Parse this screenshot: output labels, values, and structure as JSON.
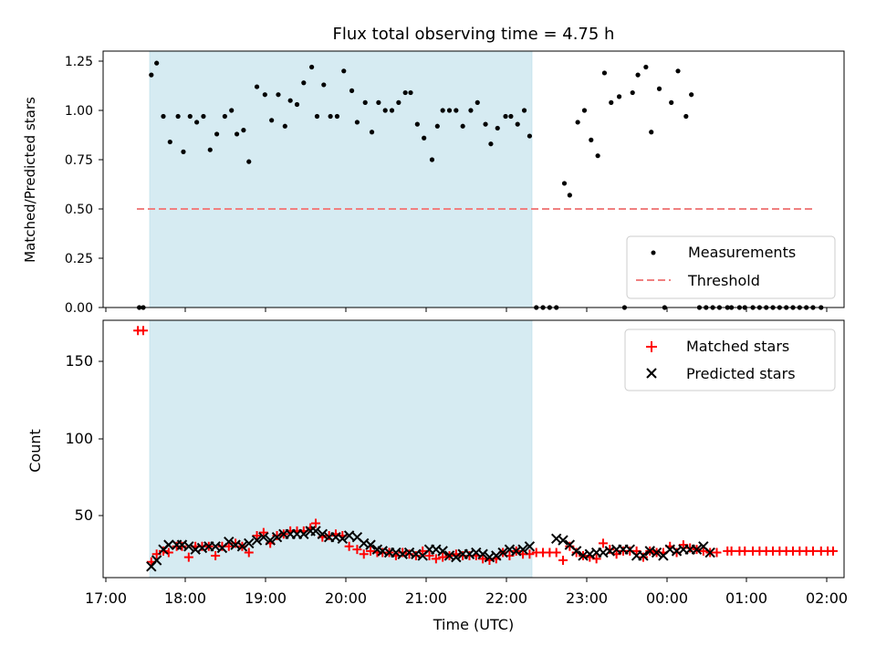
{
  "title": "Flux total observing time = 4.75 h",
  "colors": {
    "shade": "#add8e6",
    "measurements": "#000000",
    "threshold": "#f08080",
    "matched": "#ff0000",
    "predicted": "#000000"
  },
  "chart_data": [
    {
      "type": "scatter",
      "ylabel": "Matched/Predicted stars",
      "xlim": [
        "17:00",
        "02:10"
      ],
      "ylim": [
        0,
        1.3
      ],
      "yticks": [
        "0.00",
        "0.25",
        "0.50",
        "0.75",
        "1.00",
        "1.25"
      ],
      "shaded_span": [
        "17:34",
        "22:17"
      ],
      "legend": {
        "position": "lower-right",
        "entries": [
          "Measurements",
          "Threshold"
        ]
      },
      "threshold": {
        "name": "Threshold",
        "value": 0.5,
        "x_range": [
          "17:25",
          "02:05"
        ]
      },
      "series": [
        {
          "name": "Measurements",
          "x": [
            "17:25",
            "17:28",
            "17:34",
            "17:38",
            "17:43",
            "17:48",
            "17:54",
            "17:58",
            "18:03",
            "18:08",
            "18:13",
            "18:18",
            "18:23",
            "18:29",
            "18:34",
            "18:38",
            "18:43",
            "18:47",
            "18:53",
            "18:59",
            "19:04",
            "19:09",
            "19:14",
            "19:18",
            "19:23",
            "19:28",
            "19:34",
            "19:38",
            "19:43",
            "19:48",
            "19:53",
            "19:58",
            "20:04",
            "20:08",
            "20:14",
            "20:19",
            "20:24",
            "20:29",
            "20:34",
            "20:39",
            "20:44",
            "20:48",
            "20:53",
            "20:58",
            "21:04",
            "21:08",
            "21:12",
            "21:17",
            "21:22",
            "21:27",
            "21:33",
            "21:38",
            "21:44",
            "21:48",
            "21:53",
            "21:59",
            "22:03",
            "22:08",
            "22:13",
            "22:17",
            "22:22",
            "22:27",
            "22:32",
            "22:37",
            "22:43",
            "22:47",
            "22:53",
            "22:58",
            "23:03",
            "23:08",
            "23:13",
            "23:18",
            "23:24",
            "23:28",
            "23:34",
            "23:38",
            "23:44",
            "23:48",
            "23:54",
            "23:58",
            "00:03",
            "00:08",
            "00:14",
            "00:18",
            "00:24",
            "00:29",
            "00:34",
            "00:39",
            "00:45",
            "00:48",
            "00:54",
            "00:58",
            "01:04",
            "01:09",
            "01:14",
            "01:19",
            "01:24",
            "01:29",
            "01:34",
            "01:39",
            "01:44",
            "01:49",
            "01:55"
          ],
          "y": [
            0,
            0,
            1.18,
            1.24,
            0.97,
            0.84,
            0.97,
            0.79,
            0.97,
            0.94,
            0.97,
            0.8,
            0.88,
            0.97,
            1.0,
            0.88,
            0.9,
            0.74,
            1.12,
            1.08,
            0.95,
            1.08,
            0.92,
            1.05,
            1.03,
            1.14,
            1.22,
            0.97,
            1.13,
            0.97,
            0.97,
            1.2,
            1.1,
            0.94,
            1.04,
            0.89,
            1.04,
            1.0,
            1.0,
            1.04,
            1.09,
            1.09,
            0.93,
            0.86,
            0.75,
            0.92,
            1.0,
            1.0,
            1.0,
            0.92,
            1.0,
            1.04,
            0.93,
            0.83,
            0.91,
            0.97,
            0.97,
            0.93,
            1.0,
            0.87,
            0,
            0,
            0,
            0,
            0.63,
            0.57,
            0.94,
            1.0,
            0.85,
            0.77,
            1.19,
            1.04,
            1.07,
            0,
            1.09,
            1.18,
            1.22,
            0.89,
            1.11,
            0,
            1.04,
            1.2,
            0.97,
            1.08,
            0,
            0,
            0,
            0,
            0,
            0,
            0,
            0,
            0,
            0,
            0,
            0,
            0,
            0,
            0,
            0,
            0,
            0,
            0
          ]
        }
      ]
    },
    {
      "type": "scatter",
      "xlabel": "Time (UTC)",
      "ylabel": "Count",
      "xlim": [
        "17:00",
        "02:10"
      ],
      "ylim": [
        9,
        177
      ],
      "yticks": [
        "50",
        "100",
        "150"
      ],
      "xticks": [
        "17:00",
        "18:00",
        "19:00",
        "20:00",
        "21:00",
        "22:00",
        "23:00",
        "00:00",
        "01:00",
        "02:00"
      ],
      "shaded_span": [
        "17:34",
        "22:17"
      ],
      "legend": {
        "position": "top-right",
        "entries": [
          "Matched stars",
          "Predicted stars"
        ]
      },
      "series": [
        {
          "name": "Matched stars",
          "x": [
            "17:24",
            "17:28",
            "17:34",
            "17:38",
            "17:43",
            "17:47",
            "17:53",
            "17:57",
            "18:02",
            "18:07",
            "18:12",
            "18:17",
            "18:22",
            "18:27",
            "18:32",
            "18:37",
            "18:42",
            "18:47",
            "18:53",
            "18:58",
            "19:03",
            "19:08",
            "19:13",
            "19:18",
            "19:23",
            "19:28",
            "19:33",
            "19:37",
            "19:42",
            "19:47",
            "19:52",
            "19:57",
            "20:02",
            "20:08",
            "20:13",
            "20:18",
            "20:23",
            "20:27",
            "20:32",
            "20:37",
            "20:42",
            "20:47",
            "20:52",
            "20:57",
            "21:02",
            "21:07",
            "21:12",
            "21:17",
            "21:22",
            "21:27",
            "21:32",
            "21:37",
            "21:42",
            "21:47",
            "21:52",
            "21:57",
            "22:02",
            "22:07",
            "22:12",
            "22:17",
            "22:22",
            "22:27",
            "22:32",
            "22:37",
            "22:42",
            "22:47",
            "22:52",
            "22:57",
            "23:02",
            "23:07",
            "23:12",
            "23:17",
            "23:22",
            "23:27",
            "23:32",
            "23:37",
            "23:42",
            "23:47",
            "23:52",
            "23:57",
            "00:02",
            "00:07",
            "00:12",
            "00:17",
            "00:22",
            "00:27",
            "00:32",
            "00:37",
            "00:45",
            "00:48",
            "00:54",
            "00:58",
            "01:04",
            "01:09",
            "01:14",
            "01:19",
            "01:24",
            "01:29",
            "01:34",
            "01:39",
            "01:44",
            "01:49",
            "01:55",
            "02:00",
            "02:04"
          ],
          "y": [
            170,
            170,
            20,
            25,
            27,
            26,
            30,
            30,
            23,
            30,
            30,
            30,
            24,
            30,
            30,
            32,
            30,
            26,
            37,
            39,
            32,
            37,
            38,
            40,
            40,
            40,
            42,
            45,
            36,
            37,
            38,
            37,
            30,
            28,
            25,
            27,
            26,
            26,
            26,
            24,
            26,
            25,
            24,
            27,
            24,
            22,
            23,
            24,
            25,
            24,
            24,
            24,
            22,
            21,
            22,
            26,
            24,
            27,
            25,
            25,
            26,
            26,
            26,
            26,
            21,
            30,
            26,
            24,
            23,
            22,
            32,
            28,
            25,
            27,
            27,
            27,
            23,
            27,
            26,
            26,
            30,
            26,
            31,
            29,
            28,
            27,
            26,
            26,
            27,
            27,
            27,
            27,
            27,
            27,
            27,
            27,
            27,
            27,
            27,
            27,
            27,
            27,
            27,
            27,
            27
          ]
        },
        {
          "name": "Predicted stars",
          "x": [
            "17:34",
            "17:38",
            "17:43",
            "17:47",
            "17:53",
            "17:57",
            "18:02",
            "18:07",
            "18:12",
            "18:17",
            "18:22",
            "18:27",
            "18:32",
            "18:37",
            "18:42",
            "18:47",
            "18:53",
            "18:58",
            "19:03",
            "19:08",
            "19:13",
            "19:18",
            "19:23",
            "19:28",
            "19:33",
            "19:37",
            "19:42",
            "19:47",
            "19:52",
            "19:57",
            "20:02",
            "20:08",
            "20:13",
            "20:18",
            "20:23",
            "20:27",
            "20:32",
            "20:37",
            "20:42",
            "20:47",
            "20:52",
            "20:57",
            "21:02",
            "21:07",
            "21:12",
            "21:17",
            "21:22",
            "21:27",
            "21:32",
            "21:37",
            "21:42",
            "21:47",
            "21:52",
            "21:57",
            "22:02",
            "22:07",
            "22:12",
            "22:17",
            "22:37",
            "22:42",
            "22:47",
            "22:52",
            "22:57",
            "23:02",
            "23:07",
            "23:12",
            "23:17",
            "23:22",
            "23:27",
            "23:32",
            "23:37",
            "23:42",
            "23:47",
            "23:52",
            "23:57",
            "00:02",
            "00:07",
            "00:12",
            "00:17",
            "00:22",
            "00:27",
            "00:32"
          ],
          "y": [
            17,
            21,
            28,
            31,
            31,
            31,
            30,
            28,
            29,
            30,
            30,
            29,
            33,
            31,
            30,
            32,
            34,
            36,
            34,
            36,
            38,
            38,
            38,
            38,
            40,
            40,
            38,
            36,
            36,
            35,
            37,
            36,
            32,
            31,
            28,
            27,
            26,
            26,
            25,
            26,
            25,
            24,
            28,
            28,
            27,
            24,
            23,
            25,
            25,
            26,
            25,
            23,
            24,
            26,
            28,
            27,
            28,
            30,
            35,
            34,
            31,
            27,
            24,
            25,
            26,
            26,
            27,
            28,
            28,
            28,
            24,
            24,
            27,
            26,
            24,
            28,
            27,
            28,
            28,
            28,
            30,
            26
          ]
        }
      ]
    }
  ]
}
